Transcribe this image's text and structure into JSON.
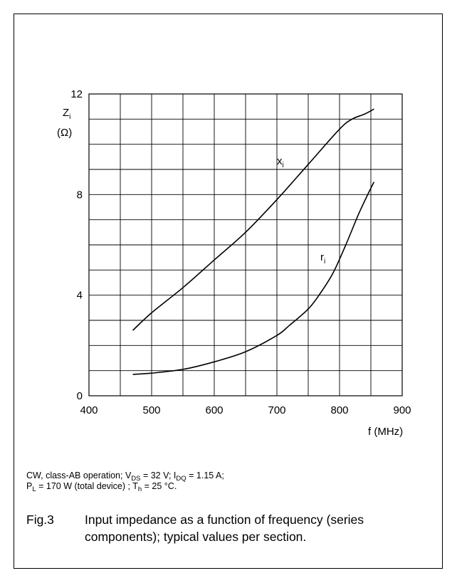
{
  "chart_data": {
    "type": "line",
    "ylabel": "Z",
    "ylabel_sub": "i",
    "ylabel_unit": "(Ω)",
    "xlabel": "f (MHz)",
    "xlim": [
      400,
      900
    ],
    "ylim": [
      0,
      12
    ],
    "x_ticks": [
      "400",
      "500",
      "600",
      "700",
      "800",
      "900"
    ],
    "y_ticks": [
      "0",
      "4",
      "8",
      "12"
    ],
    "grid": true,
    "series": [
      {
        "name": "x",
        "name_sub": "i",
        "x": [
          470,
          500,
          550,
          600,
          650,
          700,
          750,
          800,
          820,
          840,
          855
        ],
        "y": [
          2.6,
          3.3,
          4.3,
          5.4,
          6.5,
          7.8,
          9.2,
          10.6,
          11.0,
          11.2,
          11.4
        ]
      },
      {
        "name": "r",
        "name_sub": "i",
        "x": [
          470,
          500,
          550,
          600,
          650,
          700,
          720,
          750,
          770,
          790,
          810,
          830,
          845,
          855
        ],
        "y": [
          0.85,
          0.9,
          1.05,
          1.35,
          1.75,
          2.4,
          2.8,
          3.45,
          4.1,
          4.9,
          6.0,
          7.2,
          8.0,
          8.5
        ]
      }
    ]
  },
  "conditions": {
    "line1": {
      "t1": "CW, class-AB operation; V",
      "s1": "DS",
      "t2": " = 32 V; I",
      "s2": "DQ",
      "t3": " = 1.15 A;"
    },
    "line2": {
      "t1": "P",
      "s1": "L",
      "t2": " = 170 W (total device) ; T",
      "s2": "h",
      "t3": " = 25 °C."
    }
  },
  "caption": {
    "fig_number": "Fig.3",
    "text": "Input impedance as a function of frequency (series components); typical values per section."
  }
}
